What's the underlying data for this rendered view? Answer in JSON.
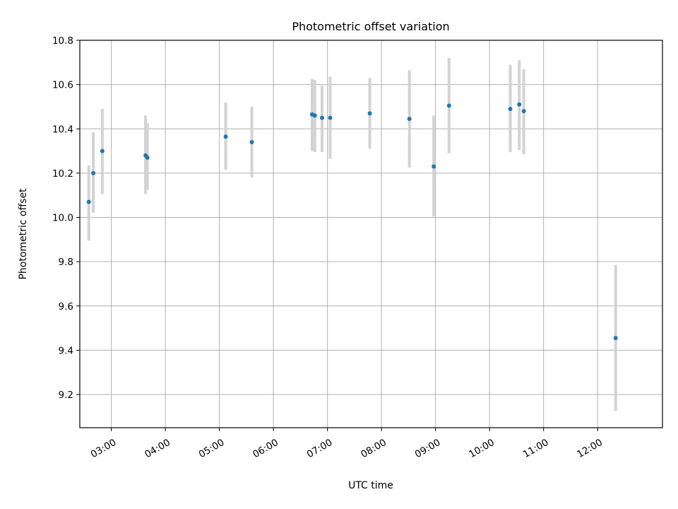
{
  "chart_data": {
    "type": "scatter",
    "title": "Photometric offset variation",
    "xlabel": "UTC time",
    "ylabel": "Photometric offset",
    "x_axis": {
      "kind": "time",
      "range": [
        "02:25",
        "13:12"
      ],
      "ticks": [
        "03:00",
        "04:00",
        "05:00",
        "06:00",
        "07:00",
        "08:00",
        "09:00",
        "10:00",
        "11:00",
        "12:00"
      ]
    },
    "y_axis": {
      "range": [
        9.05,
        10.8
      ],
      "ticks": [
        9.2,
        9.4,
        9.6,
        9.8,
        10.0,
        10.2,
        10.4,
        10.6,
        10.8
      ],
      "tick_labels": [
        "9.2",
        "9.4",
        "9.6",
        "9.8",
        "10.0",
        "10.2",
        "10.4",
        "10.6",
        "10.8"
      ]
    },
    "grid": true,
    "marker_color": "#1f77b4",
    "errorbar_color": "#d3d3d3",
    "points": [
      {
        "time": "02:35",
        "y": 10.07,
        "err_low": 9.895,
        "err_high": 10.235
      },
      {
        "time": "02:40",
        "y": 10.2,
        "err_low": 10.02,
        "err_high": 10.385
      },
      {
        "time": "02:50",
        "y": 10.3,
        "err_low": 10.105,
        "err_high": 10.49
      },
      {
        "time": "03:38",
        "y": 10.28,
        "err_low": 10.105,
        "err_high": 10.46
      },
      {
        "time": "03:40",
        "y": 10.27,
        "err_low": 10.125,
        "err_high": 10.425
      },
      {
        "time": "05:07",
        "y": 10.365,
        "err_low": 10.215,
        "err_high": 10.52
      },
      {
        "time": "05:36",
        "y": 10.34,
        "err_low": 10.18,
        "err_high": 10.5
      },
      {
        "time": "06:43",
        "y": 10.465,
        "err_low": 10.3,
        "err_high": 10.625
      },
      {
        "time": "06:46",
        "y": 10.46,
        "err_low": 10.295,
        "err_high": 10.62
      },
      {
        "time": "06:54",
        "y": 10.45,
        "err_low": 10.295,
        "err_high": 10.595
      },
      {
        "time": "07:03",
        "y": 10.45,
        "err_low": 10.265,
        "err_high": 10.635
      },
      {
        "time": "07:47",
        "y": 10.47,
        "err_low": 10.31,
        "err_high": 10.63
      },
      {
        "time": "08:31",
        "y": 10.445,
        "err_low": 10.225,
        "err_high": 10.665
      },
      {
        "time": "08:58",
        "y": 10.23,
        "err_low": 10.005,
        "err_high": 10.46
      },
      {
        "time": "09:15",
        "y": 10.505,
        "err_low": 10.29,
        "err_high": 10.72
      },
      {
        "time": "10:23",
        "y": 10.49,
        "err_low": 10.295,
        "err_high": 10.69
      },
      {
        "time": "10:33",
        "y": 10.51,
        "err_low": 10.305,
        "err_high": 10.71
      },
      {
        "time": "10:38",
        "y": 10.48,
        "err_low": 10.285,
        "err_high": 10.67
      },
      {
        "time": "12:20",
        "y": 9.455,
        "err_low": 9.125,
        "err_high": 9.785
      }
    ]
  }
}
